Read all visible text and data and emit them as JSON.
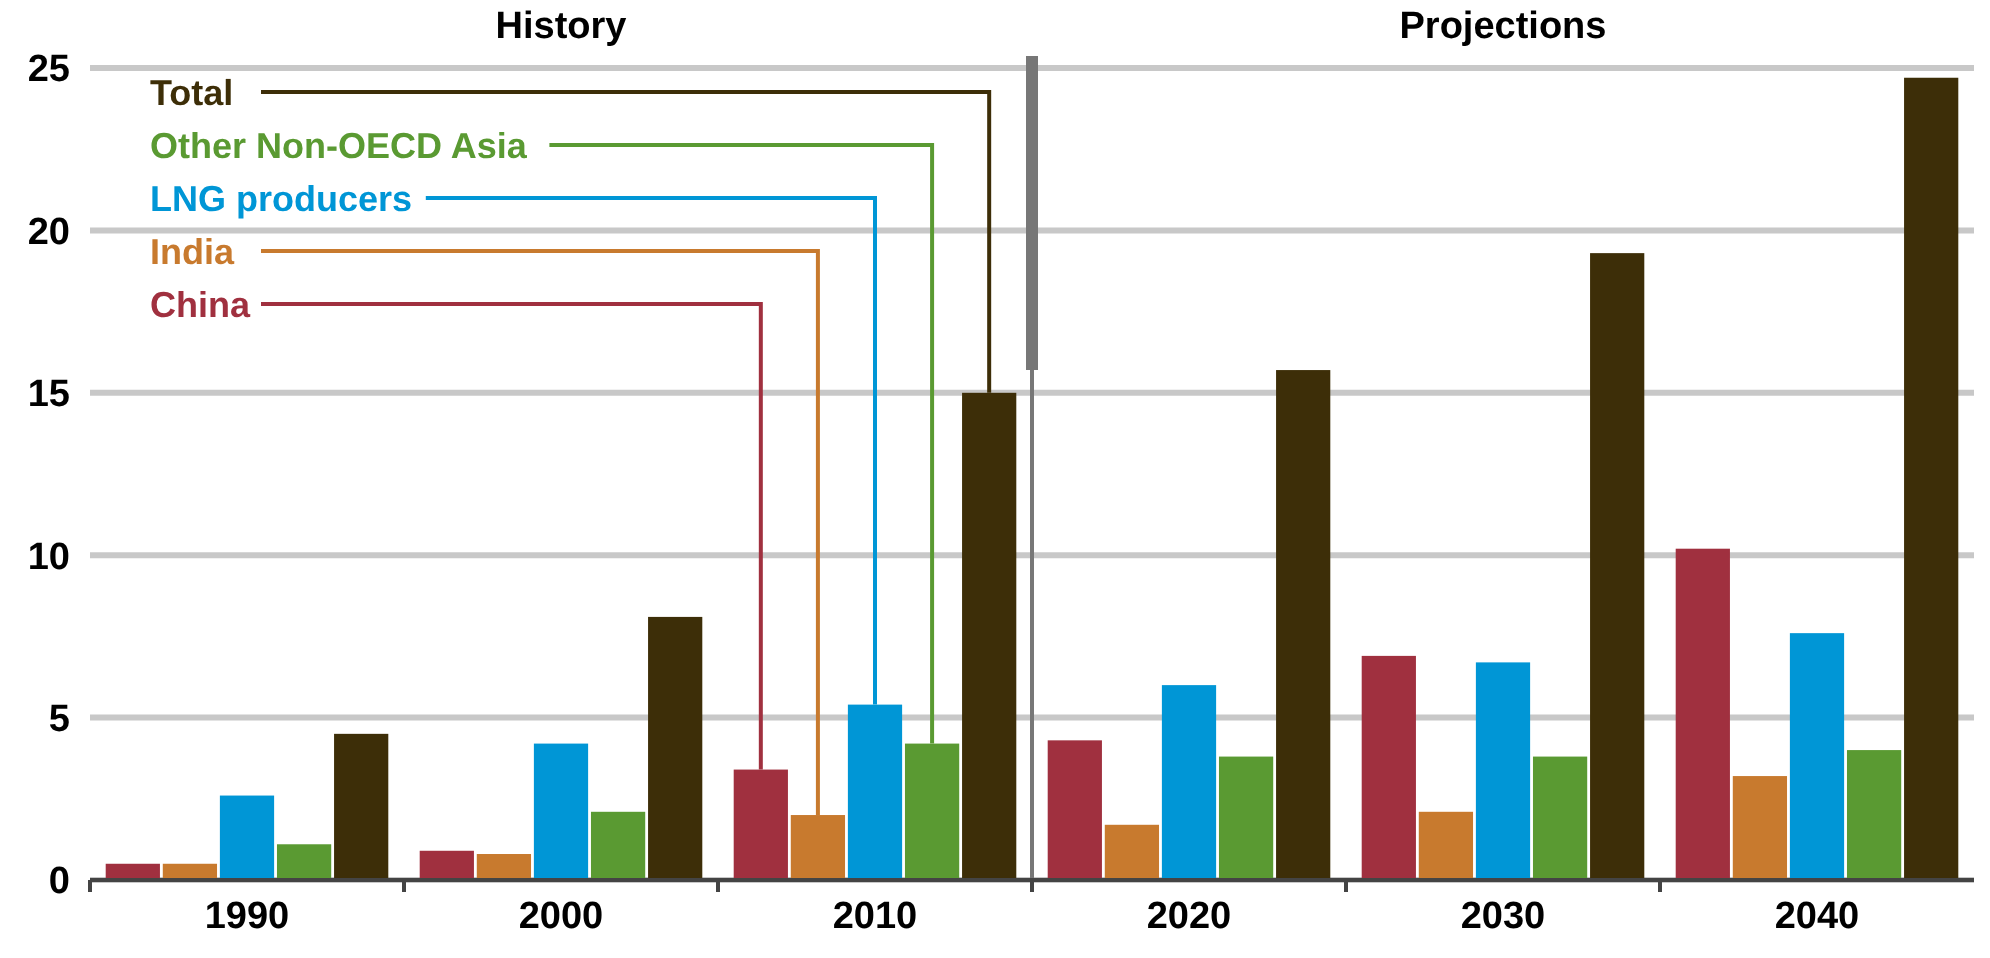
{
  "chart_data": {
    "type": "bar",
    "categories": [
      "1990",
      "2000",
      "2010",
      "2020",
      "2030",
      "2040"
    ],
    "series": [
      {
        "name": "China",
        "color": "#a0303f",
        "values": [
          0.5,
          0.9,
          3.4,
          4.3,
          6.9,
          10.2
        ]
      },
      {
        "name": "India",
        "color": "#c87a2e",
        "values": [
          0.5,
          0.8,
          2.0,
          1.7,
          2.1,
          3.2
        ]
      },
      {
        "name": "LNG producers",
        "color": "#0096d6",
        "values": [
          2.6,
          4.2,
          5.4,
          6.0,
          6.7,
          7.6
        ]
      },
      {
        "name": "Other Non-OECD Asia",
        "color": "#5a9a32",
        "values": [
          1.1,
          2.1,
          4.2,
          3.8,
          3.8,
          4.0
        ]
      },
      {
        "name": "Total",
        "color": "#3d2e08",
        "values": [
          4.5,
          8.1,
          15.0,
          15.7,
          19.3,
          24.7
        ]
      }
    ],
    "ylim": [
      0,
      25
    ],
    "yticks": [
      0,
      5,
      10,
      15,
      20,
      25
    ],
    "grid": "y",
    "legend": "top left",
    "annotations": [
      "History",
      "Projections"
    ]
  }
}
